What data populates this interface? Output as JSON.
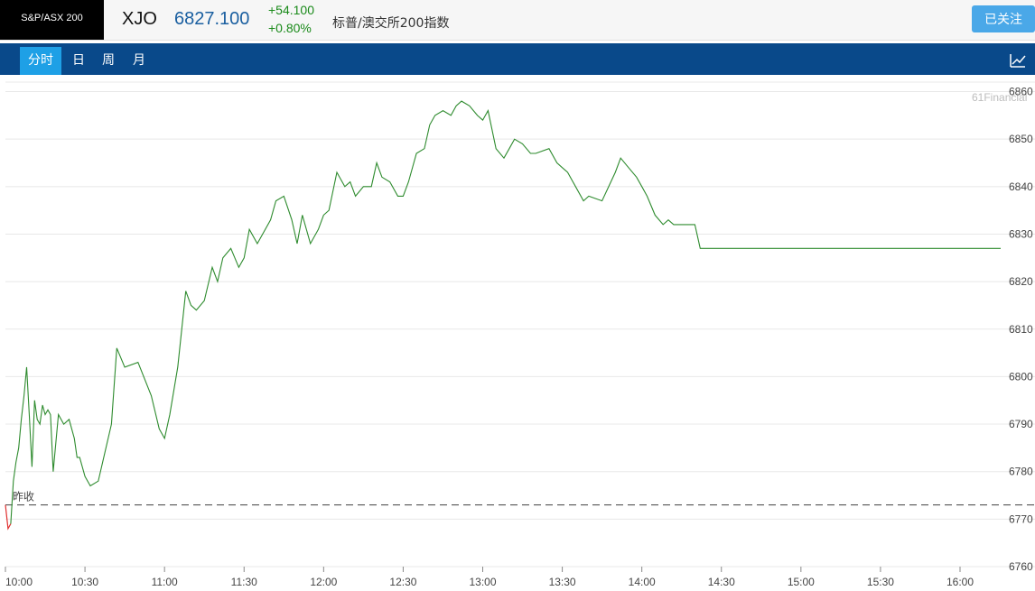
{
  "header": {
    "logo_text": "S&P/ASX 200",
    "symbol": "XJO",
    "price": "6827.100",
    "change": "+54.100",
    "change_pct": "+0.80%",
    "name": "标普/澳交所200指数",
    "follow_label": "已关注"
  },
  "tabs": [
    {
      "label": "分时",
      "active": true
    },
    {
      "label": "日",
      "active": false
    },
    {
      "label": "周",
      "active": false
    },
    {
      "label": "月",
      "active": false
    }
  ],
  "icons": {
    "chart_type": "line-chart-icon"
  },
  "colors": {
    "up": "#1a8a1a",
    "line": "#2e8b2e",
    "below_prev": "#e03030",
    "nav": "#09498a",
    "accent": "#1ea0e6"
  },
  "watermark": "61Financial",
  "chart_data": {
    "type": "line",
    "prev_close_label": "昨收",
    "prev_close": 6773,
    "ylim": [
      6760,
      6862
    ],
    "yticks": [
      6760,
      6770,
      6780,
      6790,
      6800,
      6810,
      6820,
      6830,
      6840,
      6850,
      6860
    ],
    "xticks": [
      "10:00",
      "10:30",
      "11:00",
      "11:30",
      "12:00",
      "12:30",
      "13:00",
      "13:30",
      "14:00",
      "14:30",
      "15:00",
      "15:30",
      "16:00"
    ],
    "x_minutes": [
      0,
      1,
      2,
      3,
      4,
      5,
      6,
      7,
      8,
      9,
      10,
      11,
      12,
      13,
      14,
      15,
      16,
      17,
      18,
      19,
      20,
      22,
      24,
      26,
      27,
      28,
      30,
      32,
      35,
      40,
      42,
      45,
      50,
      55,
      58,
      60,
      62,
      65,
      68,
      70,
      72,
      75,
      78,
      80,
      82,
      85,
      88,
      90,
      92,
      95,
      100,
      102,
      105,
      108,
      110,
      112,
      115,
      118,
      120,
      122,
      125,
      128,
      130,
      132,
      135,
      138,
      140,
      142,
      145,
      148,
      150,
      152,
      155,
      158,
      160,
      162,
      165,
      168,
      170,
      172,
      175,
      178,
      180,
      182,
      185,
      188,
      190,
      192,
      195,
      198,
      200,
      205,
      208,
      210,
      212,
      215,
      218,
      220,
      225,
      230,
      232,
      235,
      238,
      240,
      242,
      245,
      248,
      250,
      252,
      255,
      258,
      260,
      262,
      265,
      268,
      270,
      275,
      278,
      280,
      282,
      285,
      288,
      290,
      295,
      300,
      305,
      308,
      312,
      315,
      318,
      320,
      322,
      325,
      328,
      330,
      335,
      340,
      345,
      350,
      353,
      356,
      360,
      365,
      370,
      373,
      378,
      385,
      388,
      392,
      393,
      395,
      400
    ],
    "values": [
      6773,
      6768,
      6769,
      6778,
      6782,
      6785,
      6791,
      6796,
      6802,
      6792,
      6781,
      6795,
      6791,
      6790,
      6794,
      6792,
      6793,
      6792,
      6780,
      6786,
      6792,
      6790,
      6791,
      6787,
      6783,
      6783,
      6779,
      6777,
      6778,
      6790,
      6806,
      6802,
      6803,
      6796,
      6789,
      6787,
      6792,
      6802,
      6818,
      6815,
      6814,
      6816,
      6823,
      6820,
      6825,
      6827,
      6823,
      6825,
      6831,
      6828,
      6833,
      6837,
      6838,
      6833,
      6828,
      6834,
      6828,
      6831,
      6834,
      6835,
      6843,
      6840,
      6841,
      6838,
      6840,
      6840,
      6845,
      6842,
      6841,
      6838,
      6838,
      6841,
      6847,
      6848,
      6853,
      6855,
      6856,
      6855,
      6857,
      6858,
      6857,
      6855,
      6854,
      6856,
      6848,
      6846,
      6848,
      6850,
      6849,
      6847,
      6847,
      6848,
      6845,
      6844,
      6843,
      6840,
      6837,
      6838,
      6837,
      6843,
      6846,
      6844,
      6842,
      6840,
      6838,
      6834,
      6832,
      6833,
      6832,
      6832,
      6832,
      6832,
      6827,
      6827,
      6827,
      6827,
      6827,
      6827,
      6827,
      6827,
      6827,
      6827,
      6827,
      6827,
      6827,
      6827,
      6827,
      6827,
      6827,
      6827,
      6827,
      6827,
      6827,
      6827,
      6827,
      6827,
      6827,
      6827,
      6827,
      6827,
      6827,
      6827,
      6827,
      6827,
      6827,
      6827,
      6827,
      6827,
      6827,
      6827,
      6827,
      6827
    ]
  }
}
